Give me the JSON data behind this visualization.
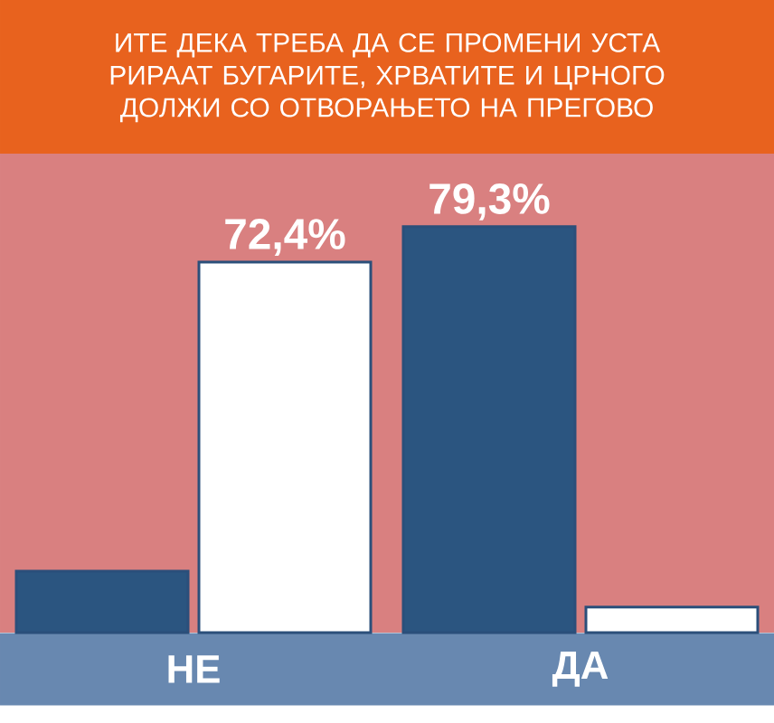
{
  "chart_data": {
    "type": "bar",
    "title": "ИТЕ ДЕКА ТРЕБА ДА СЕ ПРОМЕНИ УСТА РИРААТ БУГАРИТЕ, ХРВАТИТЕ И ЦРНОГО ДОЛЖИ СО ОТВОРАЊЕТО НА ПРЕГОВО",
    "categories": [
      "НЕ",
      "ДА"
    ],
    "series": [
      {
        "color": "#2b5580",
        "values": [
          12,
          79.3
        ],
        "value_labels": [
          null,
          "79,3%"
        ]
      },
      {
        "color": "#ffffff",
        "values": [
          72.4,
          5
        ],
        "value_labels": [
          "72,4%",
          null
        ]
      }
    ]
  }
}
